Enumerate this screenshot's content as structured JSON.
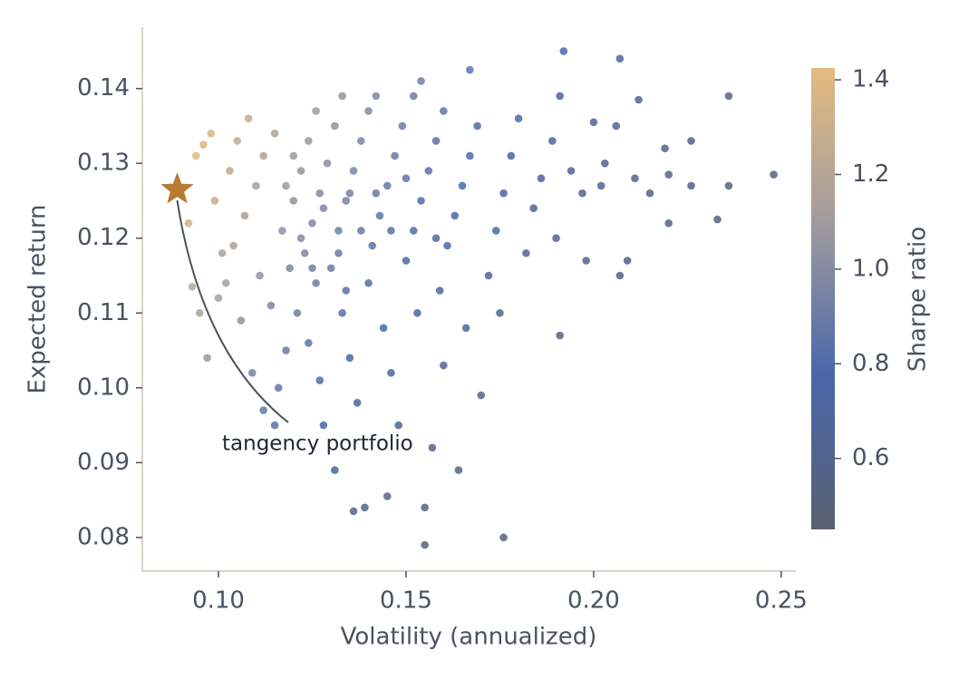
{
  "chart_data": {
    "type": "scatter",
    "xlabel": "Volatility (annualized)",
    "ylabel": "Expected return",
    "colorbar_label": "Sharpe ratio",
    "x": [
      0.092,
      0.094,
      0.096,
      0.098,
      0.093,
      0.095,
      0.097,
      0.1,
      0.103,
      0.105,
      0.108,
      0.104,
      0.107,
      0.11,
      0.112,
      0.115,
      0.111,
      0.114,
      0.106,
      0.109,
      0.112,
      0.115,
      0.118,
      0.117,
      0.12,
      0.122,
      0.124,
      0.126,
      0.119,
      0.123,
      0.125,
      0.127,
      0.129,
      0.131,
      0.133,
      0.121,
      0.124,
      0.127,
      0.128,
      0.131,
      0.126,
      0.13,
      0.132,
      0.134,
      0.136,
      0.138,
      0.14,
      0.142,
      0.133,
      0.135,
      0.137,
      0.136,
      0.139,
      0.14,
      0.141,
      0.143,
      0.145,
      0.147,
      0.149,
      0.152,
      0.154,
      0.144,
      0.146,
      0.145,
      0.148,
      0.15,
      0.152,
      0.154,
      0.156,
      0.158,
      0.16,
      0.155,
      0.155,
      0.157,
      0.153,
      0.159,
      0.161,
      0.163,
      0.165,
      0.167,
      0.169,
      0.167,
      0.164,
      0.16,
      0.166,
      0.17,
      0.172,
      0.174,
      0.176,
      0.178,
      0.18,
      0.176,
      0.175,
      0.182,
      0.184,
      0.186,
      0.189,
      0.191,
      0.192,
      0.191,
      0.19,
      0.194,
      0.197,
      0.198,
      0.2,
      0.202,
      0.203,
      0.206,
      0.207,
      0.207,
      0.209,
      0.211,
      0.212,
      0.215,
      0.219,
      0.22,
      0.22,
      0.226,
      0.226,
      0.233,
      0.236,
      0.236,
      0.248,
      0.118,
      0.122,
      0.128,
      0.132,
      0.138,
      0.142,
      0.146,
      0.125,
      0.135,
      0.12,
      0.102,
      0.099,
      0.101,
      0.116,
      0.134,
      0.15,
      0.158
    ],
    "values": [
      0.122,
      0.131,
      0.1325,
      0.134,
      0.1135,
      0.11,
      0.104,
      0.112,
      0.129,
      0.133,
      0.136,
      0.119,
      0.123,
      0.127,
      0.131,
      0.134,
      0.115,
      0.111,
      0.109,
      0.102,
      0.097,
      0.095,
      0.105,
      0.121,
      0.125,
      0.129,
      0.133,
      0.137,
      0.116,
      0.118,
      0.122,
      0.126,
      0.13,
      0.135,
      0.139,
      0.11,
      0.106,
      0.101,
      0.095,
      0.089,
      0.114,
      0.116,
      0.121,
      0.125,
      0.129,
      0.133,
      0.137,
      0.139,
      0.11,
      0.104,
      0.098,
      0.0835,
      0.084,
      0.114,
      0.119,
      0.123,
      0.127,
      0.131,
      0.135,
      0.139,
      0.141,
      0.108,
      0.102,
      0.0855,
      0.095,
      0.117,
      0.121,
      0.125,
      0.129,
      0.133,
      0.137,
      0.079,
      0.084,
      0.092,
      0.11,
      0.113,
      0.119,
      0.123,
      0.127,
      0.131,
      0.135,
      0.1425,
      0.089,
      0.103,
      0.108,
      0.099,
      0.115,
      0.121,
      0.126,
      0.131,
      0.136,
      0.08,
      0.11,
      0.118,
      0.124,
      0.128,
      0.133,
      0.139,
      0.145,
      0.107,
      0.12,
      0.129,
      0.126,
      0.117,
      0.1355,
      0.127,
      0.13,
      0.135,
      0.144,
      0.115,
      0.117,
      0.128,
      0.1385,
      0.126,
      0.132,
      0.1285,
      0.122,
      0.133,
      0.127,
      0.1225,
      0.139,
      0.127,
      0.1285,
      0.127,
      0.12,
      0.124,
      0.118,
      0.121,
      0.126,
      0.121,
      0.116,
      0.126,
      0.131,
      0.114,
      0.125,
      0.118,
      0.1,
      0.113,
      0.128,
      0.12
    ],
    "sharpe": [
      1.33,
      1.39,
      1.38,
      1.37,
      1.22,
      1.16,
      1.07,
      1.12,
      1.25,
      1.27,
      1.26,
      1.14,
      1.15,
      1.15,
      1.17,
      1.17,
      1.04,
      0.97,
      1.03,
      0.94,
      0.87,
      0.83,
      0.89,
      1.03,
      1.04,
      1.06,
      1.07,
      1.09,
      0.97,
      0.96,
      0.98,
      0.99,
      1.01,
      1.03,
      1.05,
      0.91,
      0.85,
      0.8,
      0.74,
      0.68,
      0.9,
      0.89,
      0.92,
      0.93,
      0.95,
      0.96,
      0.98,
      0.98,
      0.83,
      0.77,
      0.72,
      0.61,
      0.6,
      0.81,
      0.84,
      0.86,
      0.88,
      0.89,
      0.91,
      0.91,
      0.92,
      0.75,
      0.7,
      0.59,
      0.64,
      0.78,
      0.8,
      0.81,
      0.83,
      0.84,
      0.86,
      0.51,
      0.54,
      0.59,
      0.72,
      0.71,
      0.74,
      0.75,
      0.77,
      0.78,
      0.8,
      0.85,
      0.54,
      0.64,
      0.65,
      0.58,
      0.67,
      0.7,
      0.72,
      0.74,
      0.76,
      0.45,
      0.63,
      0.65,
      0.67,
      0.69,
      0.7,
      0.73,
      0.76,
      0.56,
      0.63,
      0.66,
      0.64,
      0.59,
      0.68,
      0.63,
      0.64,
      0.66,
      0.7,
      0.56,
      0.56,
      0.61,
      0.65,
      0.59,
      0.6,
      0.58,
      0.55,
      0.59,
      0.56,
      0.53,
      0.59,
      0.54,
      0.52,
      1.08,
      0.98,
      0.97,
      0.89,
      0.88,
      0.89,
      0.83,
      0.93,
      0.93,
      1.09,
      1.12,
      1.26,
      1.17,
      0.86,
      0.84,
      0.85,
      0.76
    ],
    "colormap": [
      "#596172",
      "#4a67aa",
      "#a19b9e",
      "#e4bb80"
    ],
    "tangency": {
      "x": 0.089,
      "y": 0.1265,
      "color": "#b87a30"
    },
    "annotation": "tangency portfolio",
    "xlim": [
      0.0797,
      0.2539
    ],
    "ylim": [
      0.0755,
      0.1482
    ],
    "clim": [
      0.45,
      1.425
    ],
    "xticks": [
      {
        "value": 0.1,
        "label": "0.10"
      },
      0.15,
      {
        "value": 0.2,
        "label": "0.20"
      },
      0.25
    ],
    "yticks": [
      0.08,
      0.09,
      {
        "value": 0.1,
        "label": "0.10"
      },
      0.11,
      0.12,
      0.13,
      0.14
    ],
    "cticks": [
      0.6,
      0.8,
      {
        "value": 1.0,
        "label": "1.0"
      },
      1.2,
      1.4
    ]
  }
}
